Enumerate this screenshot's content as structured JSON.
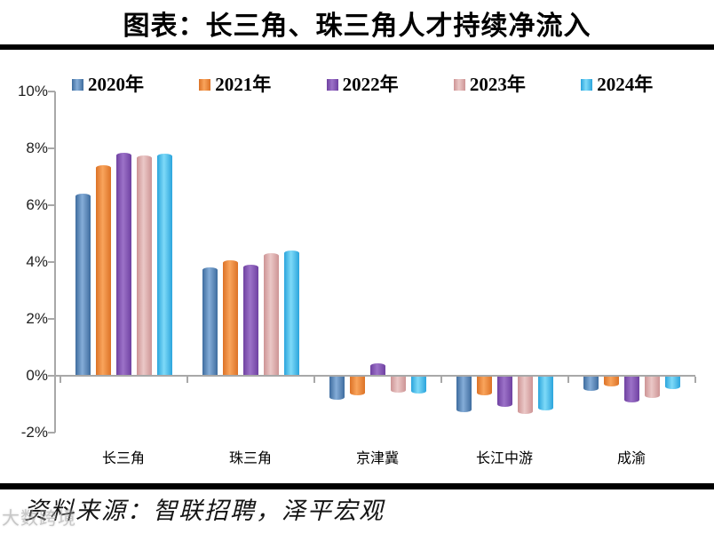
{
  "chart_data": {
    "type": "bar",
    "title": "图表：长三角、珠三角人才持续净流入",
    "categories": [
      "长三角",
      "珠三角",
      "京津冀",
      "长江中游",
      "成渝"
    ],
    "series": [
      {
        "name": "2020年",
        "color_edge": "#3E6C9E",
        "color_mid": "#85ADD8",
        "values": [
          6.4,
          3.8,
          -0.8,
          -1.25,
          -0.5
        ]
      },
      {
        "name": "2021年",
        "color_edge": "#DC7226",
        "color_mid": "#F9A45C",
        "values": [
          7.4,
          4.05,
          -0.65,
          -0.65,
          -0.35
        ]
      },
      {
        "name": "2022年",
        "color_edge": "#6F41A1",
        "color_mid": "#9C72C8",
        "values": [
          7.85,
          3.9,
          0.45,
          -1.05,
          -0.9
        ]
      },
      {
        "name": "2023年",
        "color_edge": "#CD9495",
        "color_mid": "#EBC8C7",
        "values": [
          7.75,
          4.3,
          -0.55,
          -1.3,
          -0.75
        ]
      },
      {
        "name": "2024年",
        "color_edge": "#2BA4DC",
        "color_mid": "#7EDAF8",
        "values": [
          7.8,
          4.4,
          -0.6,
          -1.2,
          -0.45
        ]
      }
    ],
    "ylim": [
      -2,
      10
    ],
    "yticks": [
      {
        "value": 10,
        "label": "10%"
      },
      {
        "value": 8,
        "label": "8%"
      },
      {
        "value": 6,
        "label": "6%"
      },
      {
        "value": 4,
        "label": "4%"
      },
      {
        "value": 2,
        "label": "2%"
      },
      {
        "value": 0,
        "label": "0%"
      },
      {
        "value": -2,
        "label": "-2%"
      }
    ],
    "xlabel": "",
    "ylabel": "",
    "grid": false,
    "legend_position": "top",
    "axis_color": "#A8A8A8"
  },
  "source_note": "资料来源：智联招聘，泽平宏观",
  "watermark": "大数跨境"
}
